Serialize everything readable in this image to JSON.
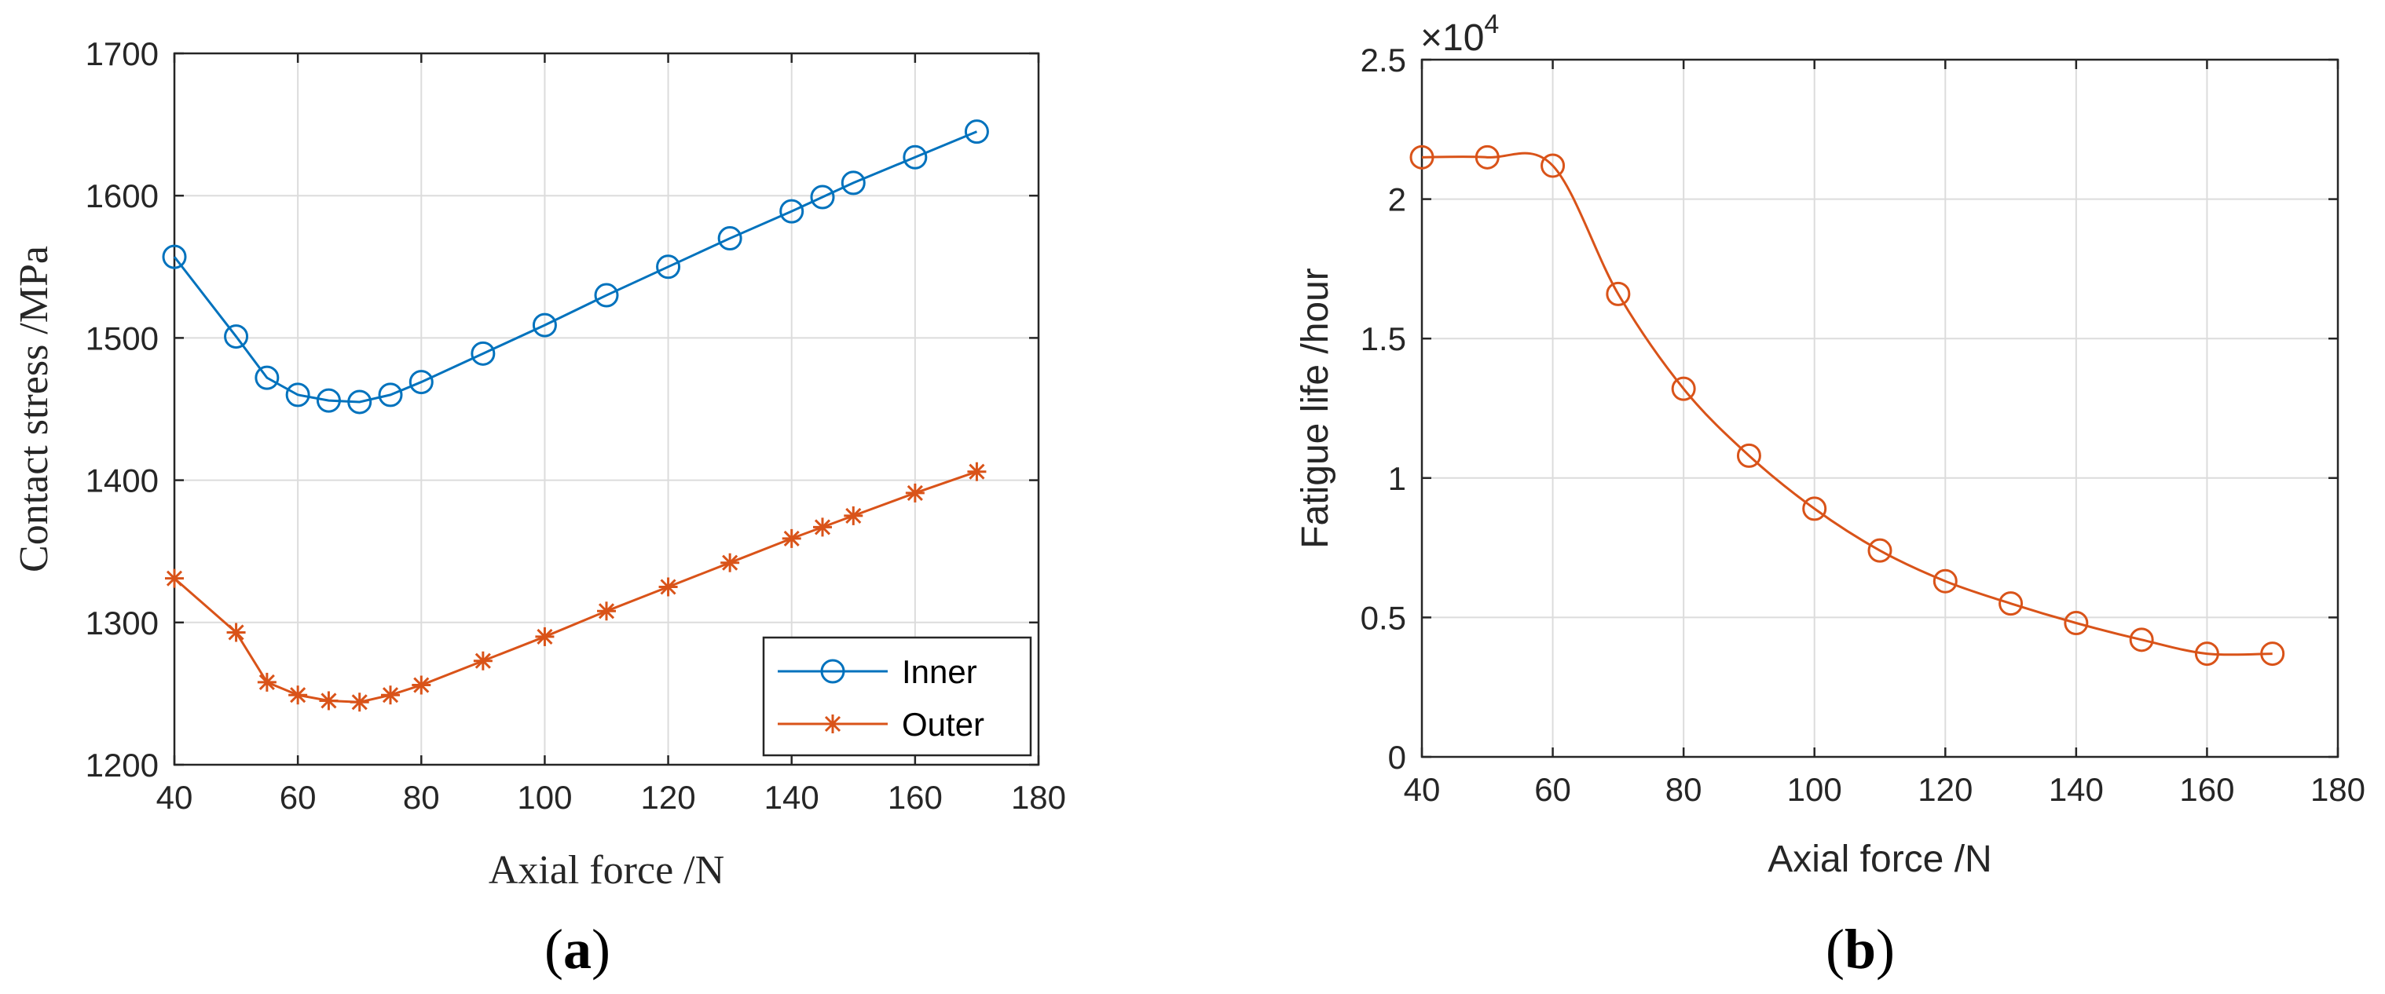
{
  "chart_data": [
    {
      "panel": "a",
      "caption_letter": "a",
      "type": "line",
      "title": "",
      "xlabel": "Axial force /N",
      "ylabel": "Contact stress /MPa",
      "xlim": [
        40,
        180
      ],
      "ylim": [
        1200,
        1700
      ],
      "xticks": [
        40,
        60,
        80,
        100,
        120,
        140,
        160,
        180
      ],
      "yticks": [
        1200,
        1300,
        1400,
        1500,
        1600,
        1700
      ],
      "grid": true,
      "legend_position": "bottom-right",
      "series": [
        {
          "name": "Inner",
          "color": "#0072BD",
          "marker": "circle",
          "x": [
            40,
            50,
            55,
            60,
            65,
            70,
            75,
            80,
            90,
            100,
            110,
            120,
            130,
            140,
            145,
            150,
            160,
            170
          ],
          "values": [
            1557,
            1501,
            1472,
            1460,
            1456,
            1455,
            1460,
            1469,
            1489,
            1509,
            1530,
            1550,
            1570,
            1589,
            1599,
            1609,
            1627,
            1645
          ]
        },
        {
          "name": "Outer",
          "color": "#D95319",
          "marker": "asterisk",
          "x": [
            40,
            50,
            55,
            60,
            65,
            70,
            75,
            80,
            90,
            100,
            110,
            120,
            130,
            140,
            145,
            150,
            160,
            170
          ],
          "values": [
            1331,
            1293,
            1258,
            1249,
            1245,
            1244,
            1249,
            1256,
            1273,
            1290,
            1308,
            1325,
            1342,
            1359,
            1367,
            1375,
            1391,
            1406
          ]
        }
      ]
    },
    {
      "panel": "b",
      "caption_letter": "b",
      "type": "line",
      "title": "",
      "xlabel": "Axial force /N",
      "ylabel": "Fatigue life /hour",
      "y_multiplier_base": "×10",
      "y_multiplier_exp": "4",
      "xlim": [
        40,
        180
      ],
      "ylim": [
        0,
        2.5
      ],
      "xticks": [
        40,
        60,
        80,
        100,
        120,
        140,
        160,
        180
      ],
      "yticks": [
        0,
        0.5,
        1,
        1.5,
        2,
        2.5
      ],
      "grid": true,
      "series": [
        {
          "name": "Fatigue life",
          "color": "#D95319",
          "marker": "circle",
          "x": [
            40,
            50,
            60,
            70,
            80,
            90,
            100,
            110,
            120,
            130,
            140,
            150,
            160,
            170
          ],
          "values": [
            2.15,
            2.15,
            2.12,
            1.66,
            1.32,
            1.08,
            0.89,
            0.74,
            0.63,
            0.55,
            0.48,
            0.42,
            0.37,
            0.37
          ]
        }
      ]
    }
  ]
}
